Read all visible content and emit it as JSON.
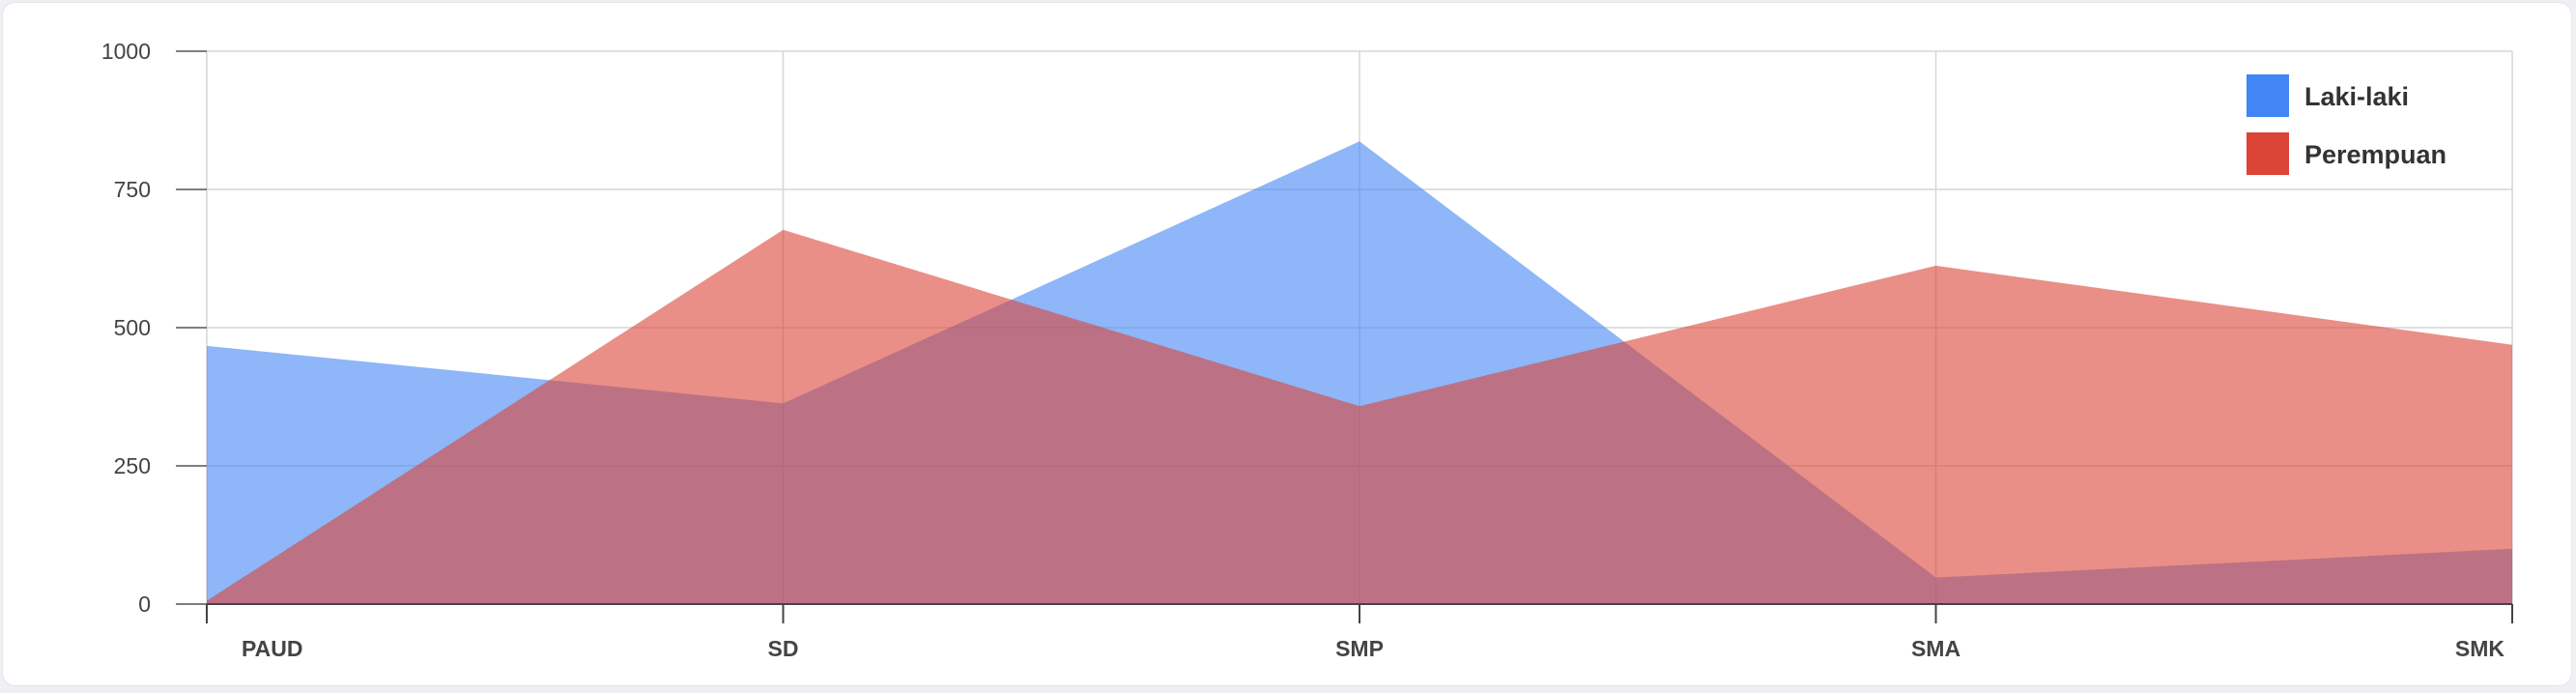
{
  "chart_data": {
    "type": "area",
    "categories": [
      "PAUD",
      "SD",
      "SMP",
      "SMA",
      "SMK"
    ],
    "series": [
      {
        "name": "Laki-laki",
        "values": [
          467,
          363,
          837,
          48,
          100
        ],
        "color": "#4285f4"
      },
      {
        "name": "Perempuan",
        "values": [
          6,
          677,
          358,
          612,
          469
        ],
        "color": "#db4437"
      }
    ],
    "yticks": [
      0,
      250,
      500,
      750,
      1000
    ],
    "ylim": [
      0,
      1000
    ],
    "grid": true,
    "legend_position": "top-right",
    "title": "",
    "xlabel": "",
    "ylabel": ""
  }
}
